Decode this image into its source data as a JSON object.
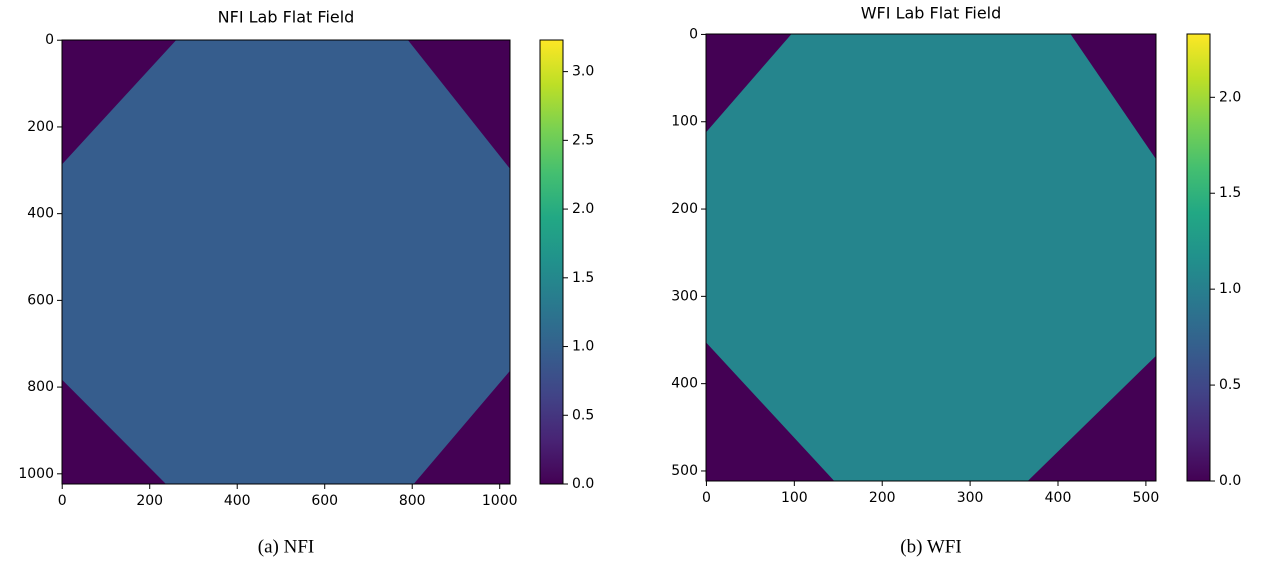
{
  "chart_data": [
    {
      "type": "image",
      "title": "NFI Lab Flat Field",
      "caption": "(a) NFI",
      "xlim": [
        -0.5,
        1023.5
      ],
      "ylim": [
        1023.5,
        -0.5
      ],
      "xticks": [
        0,
        200,
        400,
        600,
        800,
        1000
      ],
      "yticks": [
        0,
        200,
        400,
        600,
        800,
        1000
      ],
      "field_value": 0.95,
      "background_value": 0,
      "clim": [
        0,
        3.23
      ],
      "cticks": [
        {
          "value": 0,
          "label": "0.0"
        },
        0.5,
        {
          "value": 1,
          "label": "1.0"
        },
        1.5,
        {
          "value": 2,
          "label": "2.0"
        },
        2.5,
        {
          "value": 3,
          "label": "3.0"
        }
      ],
      "colormap": "viridis"
    },
    {
      "type": "image",
      "title": "WFI Lab Flat Field",
      "caption": "(b) WFI",
      "xlim": [
        -0.5,
        511.5
      ],
      "ylim": [
        511.5,
        -0.5
      ],
      "xticks": [
        0,
        100,
        200,
        300,
        400,
        500
      ],
      "yticks": [
        0,
        100,
        200,
        300,
        400,
        500
      ],
      "field_value": 1.05,
      "background_value": 0,
      "clim": [
        0,
        2.33
      ],
      "cticks": [
        {
          "value": 0,
          "label": "0.0"
        },
        0.5,
        {
          "value": 1,
          "label": "1.0"
        },
        1.5,
        {
          "value": 2,
          "label": "2.0"
        }
      ],
      "colormap": "viridis"
    }
  ]
}
